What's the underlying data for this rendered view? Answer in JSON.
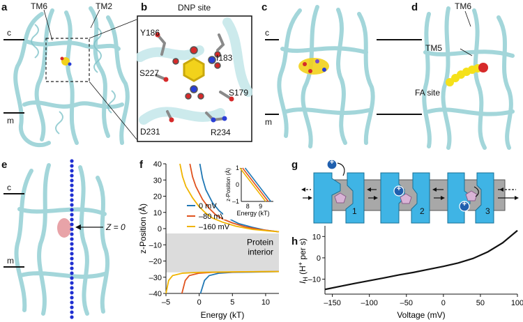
{
  "panels": {
    "a": {
      "letter": "a",
      "labels": {
        "tm6": "TM6",
        "tm2": "TM2",
        "c": "c",
        "m": "m"
      }
    },
    "b": {
      "letter": "b",
      "title": "DNP site",
      "residues": [
        "Y186",
        "S227",
        "I183",
        "S179",
        "D231",
        "R234"
      ]
    },
    "c": {
      "letter": "c",
      "labels": {
        "c": "c",
        "m": "m"
      }
    },
    "d": {
      "letter": "d",
      "labels": {
        "tm6": "TM6",
        "tm5": "TM5",
        "fa_site": "FA site"
      }
    },
    "e": {
      "letter": "e",
      "labels": {
        "c": "c",
        "m": "m",
        "z0": "Z = 0"
      }
    },
    "f": {
      "letter": "f",
      "protein_interior": [
        "Protein",
        "interior"
      ]
    },
    "g": {
      "letter": "g",
      "channel_numbers": [
        "1",
        "2",
        "3"
      ],
      "proton_symbol": "+"
    },
    "h": {
      "letter": "h"
    }
  },
  "colors": {
    "protein": "#b9e3e6",
    "protein_edge": "#7fc3c9",
    "membrane": "#a8a8a8",
    "channel": "#3fb4e5",
    "pentagon": "#d9b4d6",
    "proton": "#1f5fae",
    "series_0mV": "#1f77b4",
    "series_80mV": "#e0521d",
    "series_160mV": "#f0b400",
    "dots": "#1f2fd1",
    "fa": "#f5e11a",
    "interior_fill": "#dcdcdc"
  },
  "chart_data": [
    {
      "panel": "f",
      "type": "line",
      "xlabel": "Energy (kT)",
      "ylabel": "z-Position (Å)",
      "xlim": [
        -5,
        12
      ],
      "ylim": [
        -40,
        40
      ],
      "x_ticks": [
        -5,
        0,
        5,
        10
      ],
      "y_ticks": [
        -40,
        -30,
        -20,
        -10,
        0,
        10,
        20,
        30,
        40
      ],
      "protein_interior_band": [
        -27,
        -3
      ],
      "legend": "top-right",
      "series": [
        {
          "name": "0 mV",
          "color": "#1f77b4",
          "upper": {
            "x": [
              0.1,
              0.5,
              1,
              2,
              3,
              4,
              5,
              6,
              8,
              10,
              12
            ],
            "y": [
              40,
              31,
              24,
              16,
              11,
              7.5,
              5,
              3,
              0.8,
              -1,
              -2
            ]
          },
          "lower": {
            "x": [
              0.2,
              0.8,
              1.5,
              3,
              5,
              8,
              12
            ],
            "y": [
              -40,
              -32,
              -29,
              -27.5,
              -27,
              -26.8,
              -26.5
            ]
          }
        },
        {
          "name": "–80 mV",
          "color": "#e0521d",
          "upper": {
            "x": [
              -1.4,
              -1,
              -0.5,
              0.5,
              1.5,
              2.5,
              3.5,
              5,
              7,
              9,
              12
            ],
            "y": [
              40,
              32,
              26,
              18,
              12.5,
              8.5,
              6,
              3.5,
              1,
              -0.5,
              -2
            ]
          },
          "lower": {
            "x": [
              -2.6,
              -2.1,
              -1.5,
              0,
              2,
              5,
              8,
              12
            ],
            "y": [
              -40,
              -32,
              -29,
              -27.5,
              -27,
              -26.8,
              -26.6,
              -26.5
            ]
          }
        },
        {
          "name": "–160 mV",
          "color": "#f0b400",
          "upper": {
            "x": [
              -2.9,
              -2.5,
              -2,
              -1,
              0,
              1,
              2,
              3.5,
              5.5,
              8,
              12
            ],
            "y": [
              40,
              32,
              26,
              19,
              13.5,
              9.5,
              6.5,
              4,
              1.5,
              -0.5,
              -2
            ]
          },
          "lower": {
            "x": [
              -5,
              -4.6,
              -4,
              -2.5,
              0,
              3,
              7,
              12
            ],
            "y": [
              -40,
              -32,
              -29,
              -27.5,
              -27,
              -26.8,
              -26.6,
              -26.5
            ]
          }
        }
      ],
      "inset": {
        "type": "line",
        "xlabel": "Energy (kT)",
        "ylabel": "z-Position (Å)",
        "xlim": [
          7.5,
          10
        ],
        "ylim": [
          -1,
          1
        ],
        "x_ticks": [
          8,
          9
        ],
        "y_ticks": [
          -1,
          0,
          1
        ],
        "series": [
          {
            "name": "0 mV",
            "x": [
              7.8,
              9.8
            ],
            "y": [
              1,
              -1
            ]
          },
          {
            "name": "–80 mV",
            "x": [
              7.6,
              9.6
            ],
            "y": [
              1,
              -1
            ]
          },
          {
            "name": "–160 mV",
            "x": [
              7.4,
              9.4
            ],
            "y": [
              1,
              -1
            ]
          }
        ]
      }
    },
    {
      "panel": "h",
      "type": "line",
      "xlabel": "Voltage (mV)",
      "ylabel_main": "I",
      "ylabel_sub": "H",
      "ylabel_rest": " (H",
      "ylabel_sup": "+",
      "ylabel_tail": " per s)",
      "xlim": [
        -160,
        100
      ],
      "ylim": [
        -17,
        15
      ],
      "x_ticks": [
        -150,
        -100,
        -50,
        0,
        50,
        100
      ],
      "y_ticks": [
        -10,
        0,
        10
      ],
      "series": [
        {
          "x": [
            -160,
            -140,
            -120,
            -100,
            -80,
            -60,
            -40,
            -20,
            0,
            20,
            40,
            60,
            80,
            100
          ],
          "y": [
            -14.8,
            -13.4,
            -12,
            -10.7,
            -9.4,
            -8,
            -6.8,
            -5.4,
            -4,
            -2.4,
            -0.3,
            2.8,
            7,
            12.8
          ]
        }
      ]
    }
  ]
}
